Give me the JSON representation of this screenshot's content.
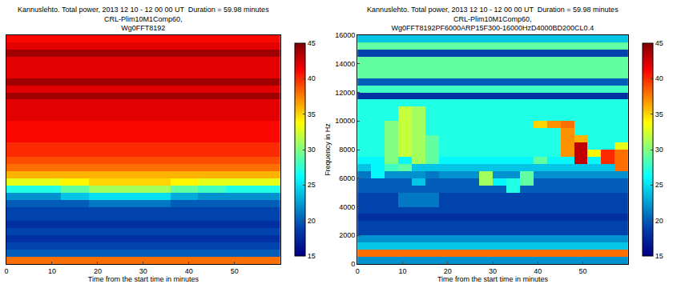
{
  "chart_data": [
    {
      "type": "heatmap",
      "title": [
        "Kannuslehto. Total power, 2013 12 10 - 12 00 00 UT  Duration = 59.98 minutes",
        "CRL-Plim10M1Comp60,",
        "Wg0FFT8192"
      ],
      "x_label": "Time from the start time in minutes",
      "color": "jet",
      "tick_labels": "x",
      "xlim": [
        0,
        60
      ],
      "xticks": [
        0,
        10,
        20,
        30,
        40,
        50
      ],
      "ylim": [
        0,
        16000
      ],
      "x": [
        3,
        9,
        15,
        21,
        27,
        33,
        39,
        45,
        51,
        57
      ],
      "y": [
        250,
        750,
        1250,
        1750,
        2250,
        2750,
        3250,
        3750,
        4250,
        4750,
        5250,
        5750,
        6250,
        6750,
        7250,
        7750,
        8250,
        8750,
        9250,
        9750,
        10250,
        10750,
        11250,
        11750,
        12250,
        12750,
        13250,
        13750,
        14250,
        14750,
        15250,
        15750
      ],
      "z": [
        [
          38,
          38,
          38,
          38,
          38,
          38,
          38,
          38,
          38,
          38
        ],
        [
          20,
          20,
          20,
          20,
          20,
          20,
          20,
          20,
          20,
          20
        ],
        [
          19,
          19,
          19,
          19,
          19,
          19,
          19,
          19,
          19,
          19
        ],
        [
          18,
          18,
          18,
          18,
          18,
          18,
          18,
          18,
          18,
          18
        ],
        [
          19,
          19,
          19,
          19,
          19,
          19,
          19,
          19,
          19,
          19
        ],
        [
          18,
          18,
          18,
          18,
          18,
          18,
          18,
          18,
          18,
          18
        ],
        [
          19,
          19,
          19,
          19,
          19,
          19,
          19,
          19,
          19,
          19
        ],
        [
          19,
          19,
          19,
          19,
          19,
          19,
          19,
          19,
          19,
          19
        ],
        [
          20,
          20,
          20,
          21,
          21,
          21,
          20,
          20,
          20,
          20
        ],
        [
          22,
          22,
          24,
          25,
          25,
          25,
          23,
          22,
          22,
          22
        ],
        [
          27,
          27,
          29,
          31,
          31,
          31,
          29,
          28,
          27,
          27
        ],
        [
          33,
          33,
          34,
          35,
          35,
          35,
          34,
          33,
          33,
          33
        ],
        [
          36,
          36,
          36,
          36,
          36,
          36,
          36,
          36,
          36,
          36
        ],
        [
          38,
          38,
          38,
          38,
          38,
          38,
          38,
          38,
          38,
          38
        ],
        [
          39,
          39,
          39,
          39,
          39,
          39,
          39,
          39,
          39,
          39
        ],
        [
          40,
          40,
          40,
          40,
          40,
          40,
          40,
          40,
          40,
          40
        ],
        [
          40,
          40,
          40,
          40,
          40,
          40,
          40,
          40,
          40,
          40
        ],
        [
          41,
          41,
          41,
          41,
          41,
          41,
          41,
          41,
          41,
          41
        ],
        [
          41,
          41,
          41,
          41,
          41,
          41,
          41,
          41,
          41,
          41
        ],
        [
          41,
          41,
          41,
          41,
          41,
          41,
          41,
          41,
          41,
          41
        ],
        [
          42,
          42,
          42,
          42,
          42,
          42,
          42,
          42,
          42,
          42
        ],
        [
          42,
          42,
          42,
          42,
          42,
          42,
          42,
          42,
          42,
          42
        ],
        [
          42,
          42,
          42,
          42,
          42,
          42,
          42,
          42,
          42,
          42
        ],
        [
          44,
          44,
          44,
          44,
          44,
          44,
          44,
          44,
          44,
          44
        ],
        [
          42,
          42,
          42,
          42,
          42,
          42,
          42,
          42,
          42,
          42
        ],
        [
          44,
          44,
          44,
          44,
          44,
          44,
          44,
          44,
          44,
          44
        ],
        [
          42,
          42,
          42,
          42,
          42,
          42,
          42,
          42,
          42,
          42
        ],
        [
          42,
          42,
          42,
          42,
          42,
          42,
          42,
          42,
          42,
          42
        ],
        [
          42,
          42,
          42,
          42,
          42,
          42,
          42,
          42,
          42,
          42
        ],
        [
          44,
          44,
          44,
          44,
          44,
          44,
          44,
          44,
          44,
          44
        ],
        [
          42,
          42,
          42,
          42,
          42,
          42,
          42,
          42,
          42,
          42
        ],
        [
          41,
          41,
          41,
          41,
          41,
          41,
          41,
          41,
          41,
          41
        ]
      ],
      "colorbar": {
        "range": [
          15,
          45
        ],
        "ticks": [
          15,
          20,
          25,
          30,
          35,
          40,
          45
        ]
      }
    },
    {
      "type": "heatmap",
      "title": [
        "Kannuslehto. Total power, 2013 12 10 - 12 00 00 UT  Duration = 59.98 minutes",
        "CRL-Plim10M1Comp60,",
        "Wg0FFT8192PF6000ARP15F300-16000HzD4000BD200CL0.4"
      ],
      "x_label": "Time from the start time in minutes",
      "y_label": "Frequency in Hz",
      "color": "jet",
      "xlim": [
        0,
        60
      ],
      "xticks": [
        0,
        10,
        20,
        30,
        40,
        50
      ],
      "ylim": [
        0,
        16000
      ],
      "yticks": [
        0,
        2000,
        4000,
        6000,
        8000,
        10000,
        12000,
        14000,
        16000
      ],
      "x": [
        1.5,
        4.5,
        7.5,
        10.5,
        13.5,
        16.5,
        19.5,
        22.5,
        25.5,
        28.5,
        31.5,
        34.5,
        37.5,
        40.5,
        43.5,
        46.5,
        49.5,
        52.5,
        55.5,
        58.5
      ],
      "y": [
        250,
        750,
        1250,
        1750,
        2250,
        2750,
        3250,
        3750,
        4250,
        4750,
        5250,
        5750,
        6250,
        6750,
        7250,
        7750,
        8250,
        8750,
        9250,
        9750,
        10250,
        10750,
        11250,
        11750,
        12250,
        12750,
        13250,
        13750,
        14250,
        14750,
        15250,
        15750
      ],
      "z": [
        [
          22,
          22,
          22,
          22,
          22,
          22,
          22,
          22,
          22,
          22,
          22,
          22,
          22,
          22,
          22,
          22,
          22,
          22,
          22,
          22
        ],
        [
          38,
          38,
          38,
          38,
          38,
          38,
          38,
          38,
          38,
          38,
          38,
          38,
          38,
          38,
          38,
          38,
          38,
          38,
          38,
          38
        ],
        [
          24,
          24,
          24,
          24,
          24,
          24,
          24,
          24,
          24,
          24,
          24,
          24,
          24,
          24,
          24,
          24,
          24,
          24,
          24,
          24
        ],
        [
          22,
          22,
          22,
          22,
          22,
          22,
          22,
          22,
          22,
          22,
          22,
          22,
          22,
          22,
          22,
          22,
          22,
          22,
          22,
          22
        ],
        [
          19,
          19,
          19,
          19,
          19,
          19,
          19,
          19,
          19,
          19,
          19,
          19,
          19,
          19,
          19,
          19,
          19,
          19,
          19,
          19
        ],
        [
          19,
          19,
          19,
          19,
          19,
          19,
          19,
          19,
          19,
          19,
          19,
          19,
          19,
          19,
          19,
          19,
          19,
          19,
          19,
          19
        ],
        [
          18,
          18,
          18,
          18,
          18,
          18,
          18,
          18,
          18,
          18,
          18,
          18,
          18,
          18,
          18,
          18,
          18,
          18,
          18,
          18
        ],
        [
          19,
          19,
          19,
          19,
          19,
          19,
          19,
          19,
          19,
          19,
          19,
          19,
          19,
          19,
          19,
          19,
          19,
          19,
          19,
          19
        ],
        [
          19,
          19,
          19,
          21,
          21,
          21,
          19,
          19,
          19,
          19,
          19,
          19,
          19,
          19,
          19,
          19,
          19,
          19,
          19,
          19
        ],
        [
          19,
          19,
          19,
          21,
          21,
          21,
          19,
          19,
          19,
          19,
          19,
          19,
          19,
          19,
          19,
          19,
          19,
          19,
          19,
          19
        ],
        [
          20,
          20,
          20,
          20,
          20,
          20,
          20,
          20,
          20,
          20,
          20,
          27,
          20,
          20,
          20,
          20,
          20,
          20,
          20,
          20
        ],
        [
          20,
          20,
          20,
          20,
          24,
          20,
          20,
          20,
          20,
          31,
          26,
          27,
          29,
          20,
          20,
          20,
          20,
          20,
          20,
          20
        ],
        [
          21,
          26,
          22,
          22,
          22,
          21,
          22,
          22,
          22,
          31,
          22,
          22,
          29,
          22,
          22,
          22,
          22,
          22,
          22,
          22
        ],
        [
          24,
          26,
          28,
          29,
          24,
          24,
          24,
          24,
          24,
          24,
          24,
          24,
          24,
          24,
          24,
          24,
          24,
          24,
          24,
          38
        ],
        [
          26,
          26,
          30,
          26,
          31,
          29,
          26,
          26,
          26,
          26,
          26,
          26,
          26,
          29,
          26,
          26,
          43,
          26,
          40,
          38
        ],
        [
          27,
          27,
          30,
          32,
          31,
          29,
          27,
          27,
          27,
          27,
          27,
          27,
          27,
          27,
          27,
          37,
          43,
          34,
          40,
          38
        ],
        [
          27,
          27,
          30,
          32,
          31,
          29,
          27,
          27,
          27,
          27,
          27,
          27,
          27,
          27,
          27,
          37,
          43,
          27,
          27,
          33
        ],
        [
          27,
          27,
          30,
          32,
          31,
          29,
          27,
          27,
          27,
          27,
          27,
          27,
          27,
          27,
          27,
          37,
          36,
          27,
          27,
          27
        ],
        [
          27,
          27,
          30,
          32,
          31,
          27,
          27,
          27,
          27,
          27,
          27,
          27,
          27,
          27,
          27,
          37,
          27,
          27,
          27,
          27
        ],
        [
          27,
          27,
          30,
          32,
          31,
          27,
          27,
          27,
          27,
          27,
          27,
          27,
          27,
          35,
          37,
          38,
          27,
          27,
          27,
          27
        ],
        [
          27,
          27,
          27,
          32,
          31,
          27,
          27,
          27,
          27,
          27,
          27,
          27,
          27,
          27,
          27,
          27,
          27,
          27,
          27,
          27
        ],
        [
          27,
          27,
          27,
          32,
          31,
          27,
          27,
          27,
          27,
          27,
          27,
          27,
          27,
          27,
          27,
          27,
          27,
          27,
          27,
          27
        ],
        [
          27,
          27,
          27,
          27,
          27,
          27,
          27,
          27,
          27,
          27,
          27,
          27,
          27,
          27,
          27,
          27,
          27,
          27,
          27,
          27
        ],
        [
          18,
          18,
          18,
          18,
          18,
          18,
          18,
          18,
          18,
          18,
          18,
          18,
          18,
          18,
          18,
          18,
          18,
          18,
          18,
          18
        ],
        [
          28,
          28,
          28,
          28,
          28,
          28,
          28,
          28,
          28,
          28,
          28,
          28,
          28,
          28,
          28,
          28,
          28,
          28,
          28,
          28
        ],
        [
          20,
          20,
          20,
          20,
          20,
          20,
          20,
          20,
          20,
          20,
          20,
          20,
          20,
          20,
          20,
          20,
          20,
          20,
          20,
          20
        ],
        [
          29,
          29,
          29,
          29,
          29,
          29,
          29,
          29,
          29,
          29,
          29,
          29,
          29,
          29,
          29,
          29,
          29,
          29,
          29,
          29
        ],
        [
          29,
          29,
          29,
          29,
          29,
          29,
          29,
          29,
          29,
          29,
          29,
          29,
          29,
          29,
          29,
          29,
          29,
          29,
          29,
          29
        ],
        [
          29,
          29,
          29,
          29,
          29,
          29,
          29,
          29,
          29,
          29,
          29,
          29,
          29,
          29,
          29,
          29,
          29,
          29,
          29,
          29
        ],
        [
          19,
          19,
          19,
          19,
          19,
          19,
          19,
          19,
          19,
          19,
          19,
          19,
          19,
          19,
          19,
          19,
          19,
          19,
          19,
          19
        ],
        [
          29,
          29,
          29,
          29,
          29,
          29,
          29,
          29,
          29,
          29,
          29,
          29,
          29,
          29,
          29,
          29,
          29,
          29,
          29,
          29
        ],
        [
          24,
          24,
          24,
          24,
          24,
          24,
          24,
          24,
          24,
          24,
          24,
          24,
          24,
          24,
          24,
          24,
          24,
          24,
          24,
          24
        ]
      ],
      "colorbar": {
        "range": [
          15,
          45
        ],
        "ticks": [
          15,
          20,
          25,
          30,
          35,
          40,
          45
        ]
      }
    }
  ]
}
